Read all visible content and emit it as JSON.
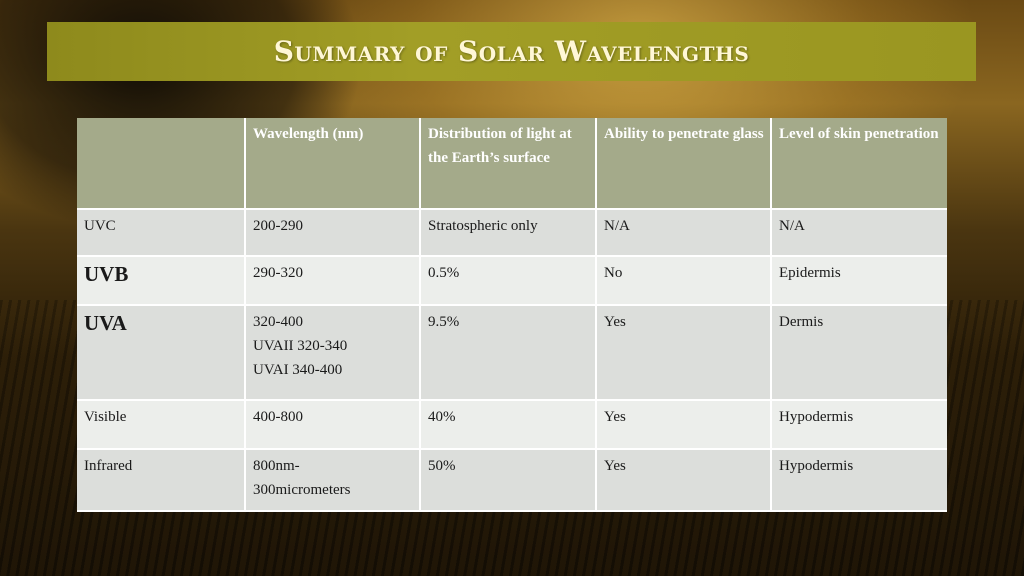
{
  "slide": {
    "title": "Summary of Solar Wavelengths"
  },
  "table": {
    "headers": [
      "",
      "Wavelength (nm)",
      "Distribution of light at the Earth’s surface",
      "Ability to penetrate glass",
      "Level of skin penetration"
    ],
    "rows": [
      {
        "name": "UVC",
        "wavelength": [
          "200-290"
        ],
        "distribution": "Stratospheric only",
        "glass": "N/A",
        "skin": "N/A"
      },
      {
        "name": "UVB",
        "wavelength": [
          "290-320"
        ],
        "distribution": "0.5%",
        "glass": "No",
        "skin": "Epidermis"
      },
      {
        "name": "UVA",
        "wavelength": [
          "320-400",
          "UVAII 320-340",
          "UVAI 340-400"
        ],
        "distribution": "9.5%",
        "glass": "Yes",
        "skin": "Dermis"
      },
      {
        "name": "Visible",
        "wavelength": [
          "400-800"
        ],
        "distribution": "40%",
        "glass": "Yes",
        "skin": "Hypodermis"
      },
      {
        "name": "Infrared",
        "wavelength": [
          "800nm-",
          "300micrometers"
        ],
        "distribution": "50%",
        "glass": "Yes",
        "skin": "Hypodermis"
      }
    ]
  }
}
